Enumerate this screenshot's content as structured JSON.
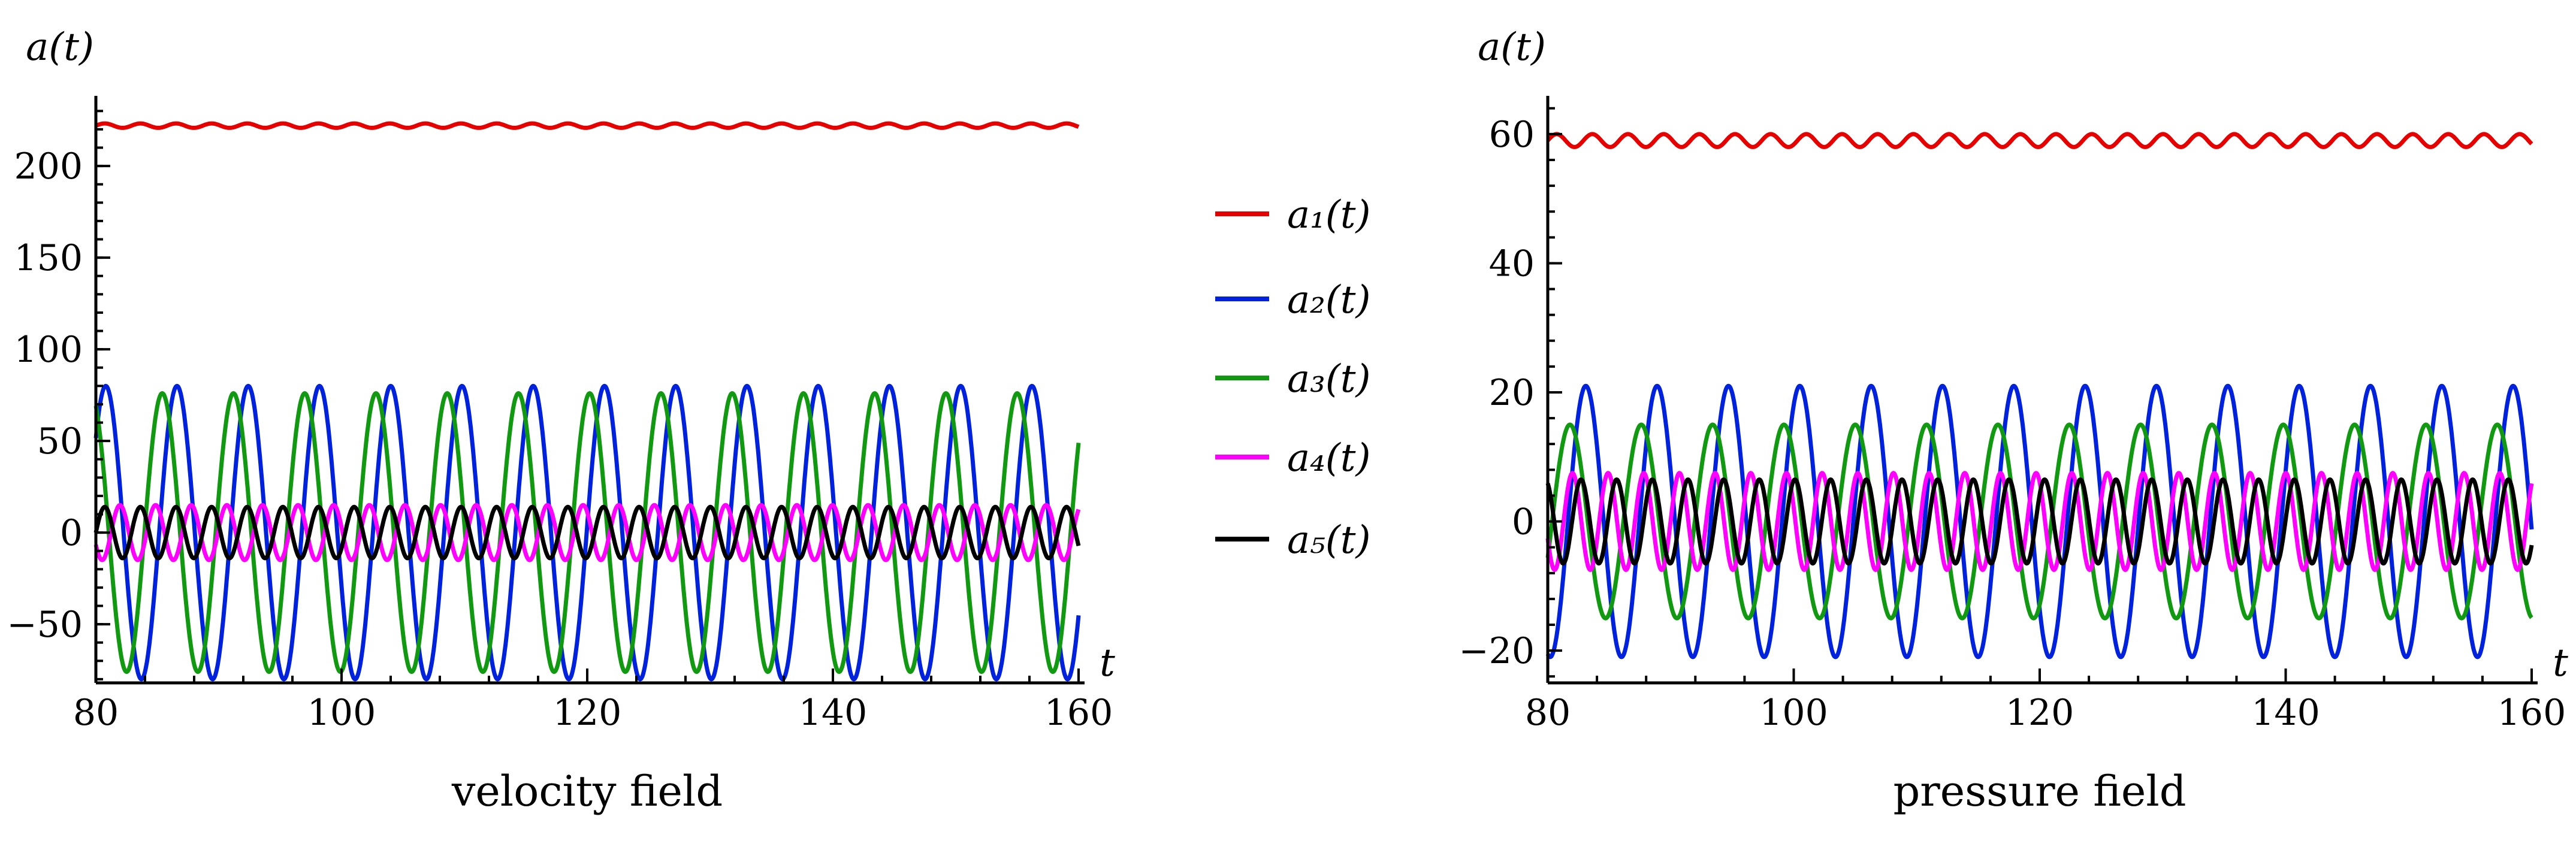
{
  "legend": [
    {
      "label": "a₁(t)",
      "color": "#e60000"
    },
    {
      "label": "a₂(t)",
      "color": "#0022dd"
    },
    {
      "label": "a₃(t)",
      "color": "#119911"
    },
    {
      "label": "a₄(t)",
      "color": "#ff00ff"
    },
    {
      "label": "a₅(t)",
      "color": "#000000"
    }
  ],
  "chart_data": [
    {
      "type": "line",
      "title": "velocity field",
      "xlabel": "t",
      "ylabel": "a(t)",
      "xlim": [
        80,
        160
      ],
      "ylim": [
        -82,
        235
      ],
      "xticks": [
        80,
        100,
        120,
        140,
        160
      ],
      "xtick_labels": [
        "80",
        "100",
        "120",
        "140",
        "160"
      ],
      "yticks": [
        -50,
        0,
        50,
        100,
        150,
        200
      ],
      "ytick_labels": [
        "−50",
        "0",
        "50",
        "100",
        "150",
        "200"
      ],
      "minor_x_step": 4,
      "minor_y_step": 10,
      "grid": false,
      "legend_position": "right",
      "series": [
        {
          "name": "a₁(t)",
          "color": "#e60000",
          "mean": 222,
          "amplitude": 1.2,
          "period": 2.9,
          "phase": 0
        },
        {
          "name": "a₂(t)",
          "color": "#0022dd",
          "mean": 0,
          "amplitude": 80,
          "period": 5.8,
          "phase": 0.7
        },
        {
          "name": "a₃(t)",
          "color": "#119911",
          "mean": 0,
          "amplitude": 76,
          "period": 5.8,
          "phase": 2.0
        },
        {
          "name": "a₄(t)",
          "color": "#ff00ff",
          "mean": 0,
          "amplitude": 15,
          "period": 2.9,
          "phase": 3.6
        },
        {
          "name": "a₅(t)",
          "color": "#000000",
          "mean": 0,
          "amplitude": 14,
          "period": 2.9,
          "phase": 0.0
        }
      ]
    },
    {
      "type": "line",
      "title": "pressure field",
      "xlabel": "t",
      "ylabel": "a(t)",
      "xlim": [
        80,
        160
      ],
      "ylim": [
        -25,
        65
      ],
      "xticks": [
        80,
        100,
        120,
        140,
        160
      ],
      "xtick_labels": [
        "80",
        "100",
        "120",
        "140",
        "160"
      ],
      "yticks": [
        -20,
        0,
        20,
        40,
        60
      ],
      "ytick_labels": [
        "−20",
        "0",
        "20",
        "40",
        "60"
      ],
      "minor_x_step": 4,
      "minor_y_step": 4,
      "grid": false,
      "series": [
        {
          "name": "a₁(t)",
          "color": "#e60000",
          "mean": 59,
          "amplitude": 1.0,
          "period": 2.9,
          "phase": 0
        },
        {
          "name": "a₂(t)",
          "color": "#0022dd",
          "mean": 0,
          "amplitude": 21,
          "period": 5.8,
          "phase": 4.5
        },
        {
          "name": "a₃(t)",
          "color": "#119911",
          "mean": 0,
          "amplitude": 15,
          "period": 5.8,
          "phase": 5.9
        },
        {
          "name": "a₄(t)",
          "color": "#ff00ff",
          "mean": 0,
          "amplitude": 7.5,
          "period": 2.9,
          "phase": 3.5
        },
        {
          "name": "a₅(t)",
          "color": "#000000",
          "mean": 0,
          "amplitude": 6.5,
          "period": 2.9,
          "phase": 2.0
        }
      ]
    }
  ]
}
